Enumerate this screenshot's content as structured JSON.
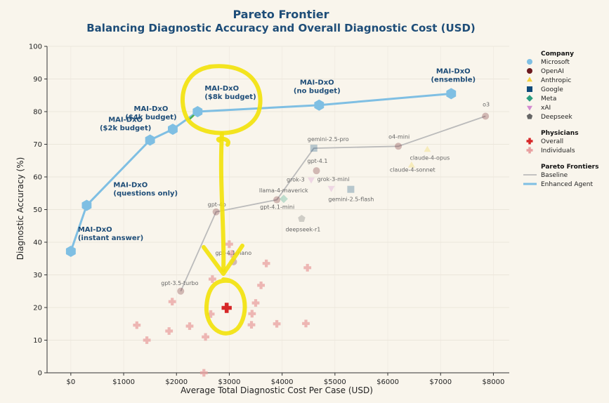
{
  "chart_data": {
    "type": "scatter",
    "title": "Pareto Frontier",
    "subtitle": "Balancing Diagnostic Accuracy and Overall Diagnostic Cost (USD)",
    "xlabel": "Average Total Diagnostic Cost Per Case (USD)",
    "ylabel": "Diagnostic Accuracy (%)",
    "xlim": [
      -450,
      8300
    ],
    "ylim": [
      0,
      100
    ],
    "x_ticks": [
      0,
      1000,
      2000,
      3000,
      4000,
      5000,
      6000,
      7000,
      8000
    ],
    "x_tick_labels": [
      "$0",
      "$1000",
      "$2000",
      "$3000",
      "$4000",
      "$5000",
      "$6000",
      "$7000",
      "$8000"
    ],
    "y_ticks": [
      0,
      10,
      20,
      30,
      40,
      50,
      60,
      70,
      80,
      90,
      100
    ],
    "grid": true,
    "legend_position": "right",
    "colors": {
      "microsoft": "#7fbfe3",
      "openai": "#6b1a1f",
      "anthropic": "#f2d13d",
      "google": "#0f4a7a",
      "meta": "#2a9d7f",
      "xai": "#d38ad0",
      "deepseek": "#666666",
      "physician": "#d62728",
      "individual": "#e8a0a0",
      "baseline": "#bbbbbb",
      "enhanced": "#7fbfe3",
      "title": "#1e4d78",
      "highlight": "#f2e20d"
    },
    "baseline_frontier": [
      [
        2080,
        25
      ],
      [
        2750,
        49.3
      ],
      [
        3900,
        53
      ],
      [
        4600,
        68.8
      ],
      [
        6200,
        69.4
      ],
      [
        7850,
        78.6
      ]
    ],
    "enhanced_frontier": [
      [
        0,
        37.2
      ],
      [
        300,
        51.3
      ],
      [
        1500,
        71.3
      ],
      [
        1930,
        74.6
      ],
      [
        2400,
        80
      ],
      [
        4700,
        82
      ],
      [
        7200,
        85.5
      ]
    ],
    "series": [
      {
        "name": "Microsoft",
        "company_key": "microsoft",
        "marker": "hexagon",
        "points": [
          {
            "label": "MAI-DxO\n(instant answer)",
            "x": 0,
            "y": 37.2
          },
          {
            "label": "MAI-DxO\n(questions only)",
            "x": 300,
            "y": 51.3
          },
          {
            "label": "MAI-DxO\n($2k budget)",
            "x": 1500,
            "y": 71.3
          },
          {
            "label": "MAI-DxO\n($4k budget)",
            "x": 1930,
            "y": 74.6
          },
          {
            "label": "MAI-DxO\n($8k budget)",
            "x": 2400,
            "y": 80
          },
          {
            "label": "MAI-DxO\n(no budget)",
            "x": 4700,
            "y": 82
          },
          {
            "label": "MAI-DxO\n(ensemble)",
            "x": 7200,
            "y": 85.5
          }
        ]
      },
      {
        "name": "OpenAI",
        "company_key": "openai",
        "marker": "circle",
        "points": [
          {
            "label": "gpt-3.5-turbo",
            "x": 2080,
            "y": 25
          },
          {
            "label": "gpt-4o",
            "x": 2750,
            "y": 49.3
          },
          {
            "label": "gpt-4.1-nano",
            "x": 3080,
            "y": 34
          },
          {
            "label": "gpt-4.1-mini",
            "x": 3900,
            "y": 53
          },
          {
            "label": "gpt-4.1",
            "x": 4650,
            "y": 61.9
          },
          {
            "label": "o4-mini",
            "x": 6200,
            "y": 69.4
          },
          {
            "label": "o3",
            "x": 7850,
            "y": 78.6
          }
        ]
      },
      {
        "name": "Anthropic",
        "company_key": "anthropic",
        "marker": "triangle-up",
        "points": [
          {
            "label": "claude-4-sonnet",
            "x": 6450,
            "y": 63.5
          },
          {
            "label": "claude-4-opus",
            "x": 6750,
            "y": 68.3
          }
        ]
      },
      {
        "name": "Google",
        "company_key": "google",
        "marker": "square",
        "points": [
          {
            "label": "gemini-2.5-pro",
            "x": 4600,
            "y": 68.8
          },
          {
            "label": "gemini-2.5-flash",
            "x": 5300,
            "y": 56.2
          }
        ]
      },
      {
        "name": "Meta",
        "company_key": "meta",
        "marker": "diamond",
        "points": [
          {
            "label": "llama-4-maverick",
            "x": 4030,
            "y": 53.3
          }
        ]
      },
      {
        "name": "xAI",
        "company_key": "xai",
        "marker": "triangle-down",
        "points": [
          {
            "label": "grok-3",
            "x": 4550,
            "y": 59.2
          },
          {
            "label": "grok-3-mini",
            "x": 4930,
            "y": 56.6
          }
        ]
      },
      {
        "name": "Deepseek",
        "company_key": "deepseek",
        "marker": "pentagon",
        "points": [
          {
            "label": "deepseek-r1",
            "x": 4370,
            "y": 47.2
          }
        ]
      }
    ],
    "physicians": {
      "overall": {
        "x": 2950,
        "y": 19.9
      },
      "individuals": [
        [
          2520,
          0
        ],
        [
          1440,
          10
        ],
        [
          1250,
          14.6
        ],
        [
          1860,
          12.8
        ],
        [
          2250,
          14.3
        ],
        [
          2550,
          11
        ],
        [
          1920,
          21.8
        ],
        [
          2650,
          18
        ],
        [
          2680,
          28.7
        ],
        [
          3000,
          39.4
        ],
        [
          3050,
          36.4
        ],
        [
          3700,
          33.5
        ],
        [
          3600,
          26.8
        ],
        [
          3500,
          21.4
        ],
        [
          3430,
          18.1
        ],
        [
          3420,
          14.7
        ],
        [
          3900,
          15
        ],
        [
          4450,
          15.1
        ],
        [
          4480,
          32.2
        ]
      ]
    },
    "annotations": {
      "dxo_labels": [
        {
          "lines": [
            "MAI-DxO",
            "(instant answer)"
          ]
        },
        {
          "lines": [
            "MAI-DxO",
            "(questions only)"
          ]
        },
        {
          "lines": [
            "MAI-DxO",
            "($2k budget)"
          ]
        },
        {
          "lines": [
            "MAI-DxO",
            "($4k budget)"
          ]
        },
        {
          "lines": [
            "MAI-DxO",
            "($8k budget)"
          ]
        },
        {
          "lines": [
            "MAI-DxO",
            "(no budget)"
          ]
        },
        {
          "lines": [
            "MAI-DxO",
            "(ensemble)"
          ]
        }
      ]
    },
    "legend": {
      "company_title": "Company",
      "company_items": [
        {
          "label": "Microsoft",
          "key": "microsoft",
          "marker": "circle"
        },
        {
          "label": "OpenAI",
          "key": "openai",
          "marker": "circle"
        },
        {
          "label": "Anthropic",
          "key": "anthropic",
          "marker": "triangle-up"
        },
        {
          "label": "Google",
          "key": "google",
          "marker": "square"
        },
        {
          "label": "Meta",
          "key": "meta",
          "marker": "diamond"
        },
        {
          "label": "xAI",
          "key": "xai",
          "marker": "triangle-down"
        },
        {
          "label": "Deepseek",
          "key": "deepseek",
          "marker": "pentagon"
        }
      ],
      "physician_title": "Physicians",
      "physician_items": [
        {
          "label": "Overall",
          "key": "physician",
          "marker": "plus"
        },
        {
          "label": "Individuals",
          "key": "individual",
          "marker": "plus"
        }
      ],
      "frontier_title": "Pareto Frontiers",
      "frontier_items": [
        {
          "label": "Baseline",
          "key": "baseline"
        },
        {
          "label": "Enhanced Agent",
          "key": "enhanced"
        }
      ]
    }
  }
}
